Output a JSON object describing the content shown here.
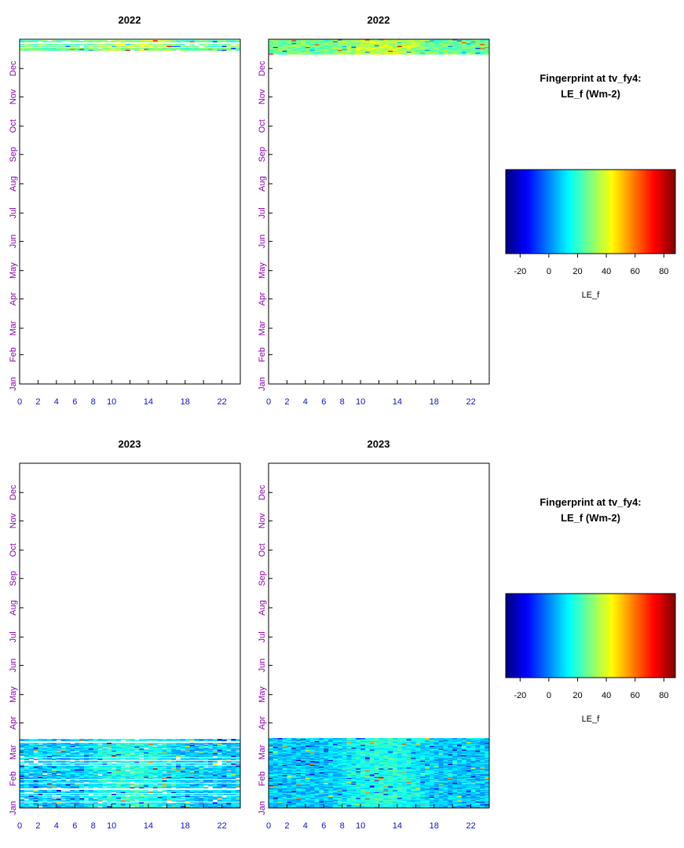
{
  "chart_data": [
    {
      "type": "heatmap",
      "panel": "top-left",
      "year_label": "2022",
      "x_ticks": [
        "0",
        "2",
        "4",
        "6",
        "8",
        "10",
        "14",
        "18",
        "22"
      ],
      "y_ticks": [
        "Jan",
        "Feb",
        "Mar",
        "Apr",
        "May",
        "Jun",
        "Jul",
        "Aug",
        "Sep",
        "Oct",
        "Nov",
        "Dec"
      ],
      "xlim": [
        0,
        24
      ],
      "ylim": [
        "Jan 1",
        "Dec 31"
      ],
      "value_range": [
        -30,
        88
      ],
      "data_rows": {
        "from": "Dec 20",
        "to": "Dec 31",
        "typical_value": 25,
        "gap_filled": false
      }
    },
    {
      "type": "heatmap",
      "panel": "top-right",
      "year_label": "2022",
      "x_ticks": [
        "0",
        "2",
        "4",
        "6",
        "8",
        "10",
        "14",
        "18",
        "22"
      ],
      "y_ticks": [
        "Jan",
        "Feb",
        "Mar",
        "Apr",
        "May",
        "Jun",
        "Jul",
        "Aug",
        "Sep",
        "Oct",
        "Nov",
        "Dec"
      ],
      "xlim": [
        0,
        24
      ],
      "ylim": [
        "Jan 1",
        "Dec 31"
      ],
      "value_range": [
        -30,
        88
      ],
      "data_rows": {
        "from": "Dec 16",
        "to": "Dec 31",
        "typical_value": 27,
        "gap_filled": true
      }
    },
    {
      "type": "heatmap",
      "panel": "bottom-left",
      "year_label": "2023",
      "x_ticks": [
        "0",
        "2",
        "4",
        "6",
        "8",
        "10",
        "14",
        "18",
        "22"
      ],
      "y_ticks": [
        "Jan",
        "Feb",
        "Mar",
        "Apr",
        "May",
        "Jun",
        "Jul",
        "Aug",
        "Sep",
        "Oct",
        "Nov",
        "Dec"
      ],
      "xlim": [
        0,
        24
      ],
      "ylim": [
        "Jan 1",
        "Dec 31"
      ],
      "value_range": [
        -30,
        88
      ],
      "data_rows": {
        "from": "Jan 1",
        "to": "Mar 14",
        "typical_value": 8,
        "gap_filled": false
      }
    },
    {
      "type": "heatmap",
      "panel": "bottom-right",
      "year_label": "2023",
      "x_ticks": [
        "0",
        "2",
        "4",
        "6",
        "8",
        "10",
        "14",
        "18",
        "22"
      ],
      "y_ticks": [
        "Jan",
        "Feb",
        "Mar",
        "Apr",
        "May",
        "Jun",
        "Jul",
        "Aug",
        "Sep",
        "Oct",
        "Nov",
        "Dec"
      ],
      "xlim": [
        0,
        24
      ],
      "ylim": [
        "Jan 1",
        "Dec 31"
      ],
      "value_range": [
        -30,
        88
      ],
      "data_rows": {
        "from": "Jan 1",
        "to": "Mar 15",
        "typical_value": 8,
        "gap_filled": true
      }
    }
  ],
  "legends": [
    {
      "title_line1": "Fingerprint at tv_fy4:",
      "title_line2": "LE_f (Wm-2)",
      "ticks": [
        "-20",
        "0",
        "20",
        "40",
        "60",
        "80"
      ],
      "xlabel": "LE_f",
      "range": [
        -30,
        88
      ]
    },
    {
      "title_line1": "Fingerprint at tv_fy4:",
      "title_line2": "LE_f (Wm-2)",
      "ticks": [
        "-20",
        "0",
        "20",
        "40",
        "60",
        "80"
      ],
      "xlabel": "LE_f",
      "range": [
        -30,
        88
      ]
    }
  ],
  "colors": {
    "colormap": [
      "#00007f",
      "#0000ff",
      "#007fff",
      "#00ffff",
      "#7fff7f",
      "#ffff00",
      "#ff7f00",
      "#ff0000",
      "#7f0000"
    ],
    "axis": "#000000",
    "y_tick_label": "#8b00b5",
    "x_tick_label": "#1010d0"
  }
}
